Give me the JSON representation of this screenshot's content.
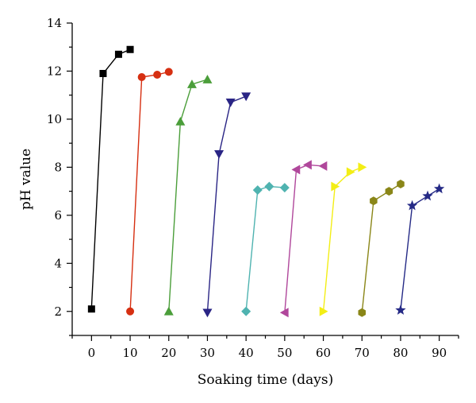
{
  "chart_data": {
    "type": "line",
    "title": "",
    "xlabel": "Soaking time (days)",
    "ylabel": "pH value",
    "xlim": [
      -5,
      95
    ],
    "ylim": [
      1,
      14
    ],
    "x_ticks": [
      0,
      10,
      20,
      30,
      40,
      50,
      60,
      70,
      80,
      90
    ],
    "y_ticks": [
      2,
      4,
      6,
      8,
      10,
      12,
      14
    ],
    "grid": false,
    "legend": "none",
    "series": [
      {
        "color": "#000000",
        "marker": "square",
        "x": [
          0,
          3,
          7,
          10
        ],
        "y": [
          2.1,
          11.9,
          12.7,
          12.9
        ]
      },
      {
        "color": "#d62f11",
        "marker": "circle",
        "x": [
          10,
          13,
          17,
          20
        ],
        "y": [
          2.0,
          11.75,
          11.85,
          11.97
        ]
      },
      {
        "color": "#4b9e3a",
        "marker": "triangle-up",
        "x": [
          20,
          23,
          26,
          30
        ],
        "y": [
          2.0,
          9.9,
          11.45,
          11.65
        ]
      },
      {
        "color": "#2a2585",
        "marker": "triangle-down",
        "x": [
          30,
          33,
          36,
          40
        ],
        "y": [
          1.95,
          8.55,
          10.7,
          10.95
        ]
      },
      {
        "color": "#4fb3b0",
        "marker": "diamond",
        "x": [
          40,
          43,
          46,
          50
        ],
        "y": [
          2.0,
          7.05,
          7.2,
          7.15
        ]
      },
      {
        "color": "#b0479b",
        "marker": "triangle-left",
        "x": [
          50,
          53,
          56,
          60
        ],
        "y": [
          1.95,
          7.9,
          8.1,
          8.05
        ]
      },
      {
        "color": "#f3ee15",
        "marker": "triangle-right",
        "x": [
          60,
          63,
          67,
          70
        ],
        "y": [
          2.0,
          7.2,
          7.8,
          8.0
        ]
      },
      {
        "color": "#8a8618",
        "marker": "hexagon",
        "x": [
          70,
          73,
          77,
          80
        ],
        "y": [
          1.95,
          6.6,
          7.0,
          7.3
        ]
      },
      {
        "color": "#252a86",
        "marker": "star",
        "x": [
          80,
          83,
          87,
          90
        ],
        "y": [
          2.05,
          6.4,
          6.8,
          7.1
        ]
      }
    ]
  }
}
